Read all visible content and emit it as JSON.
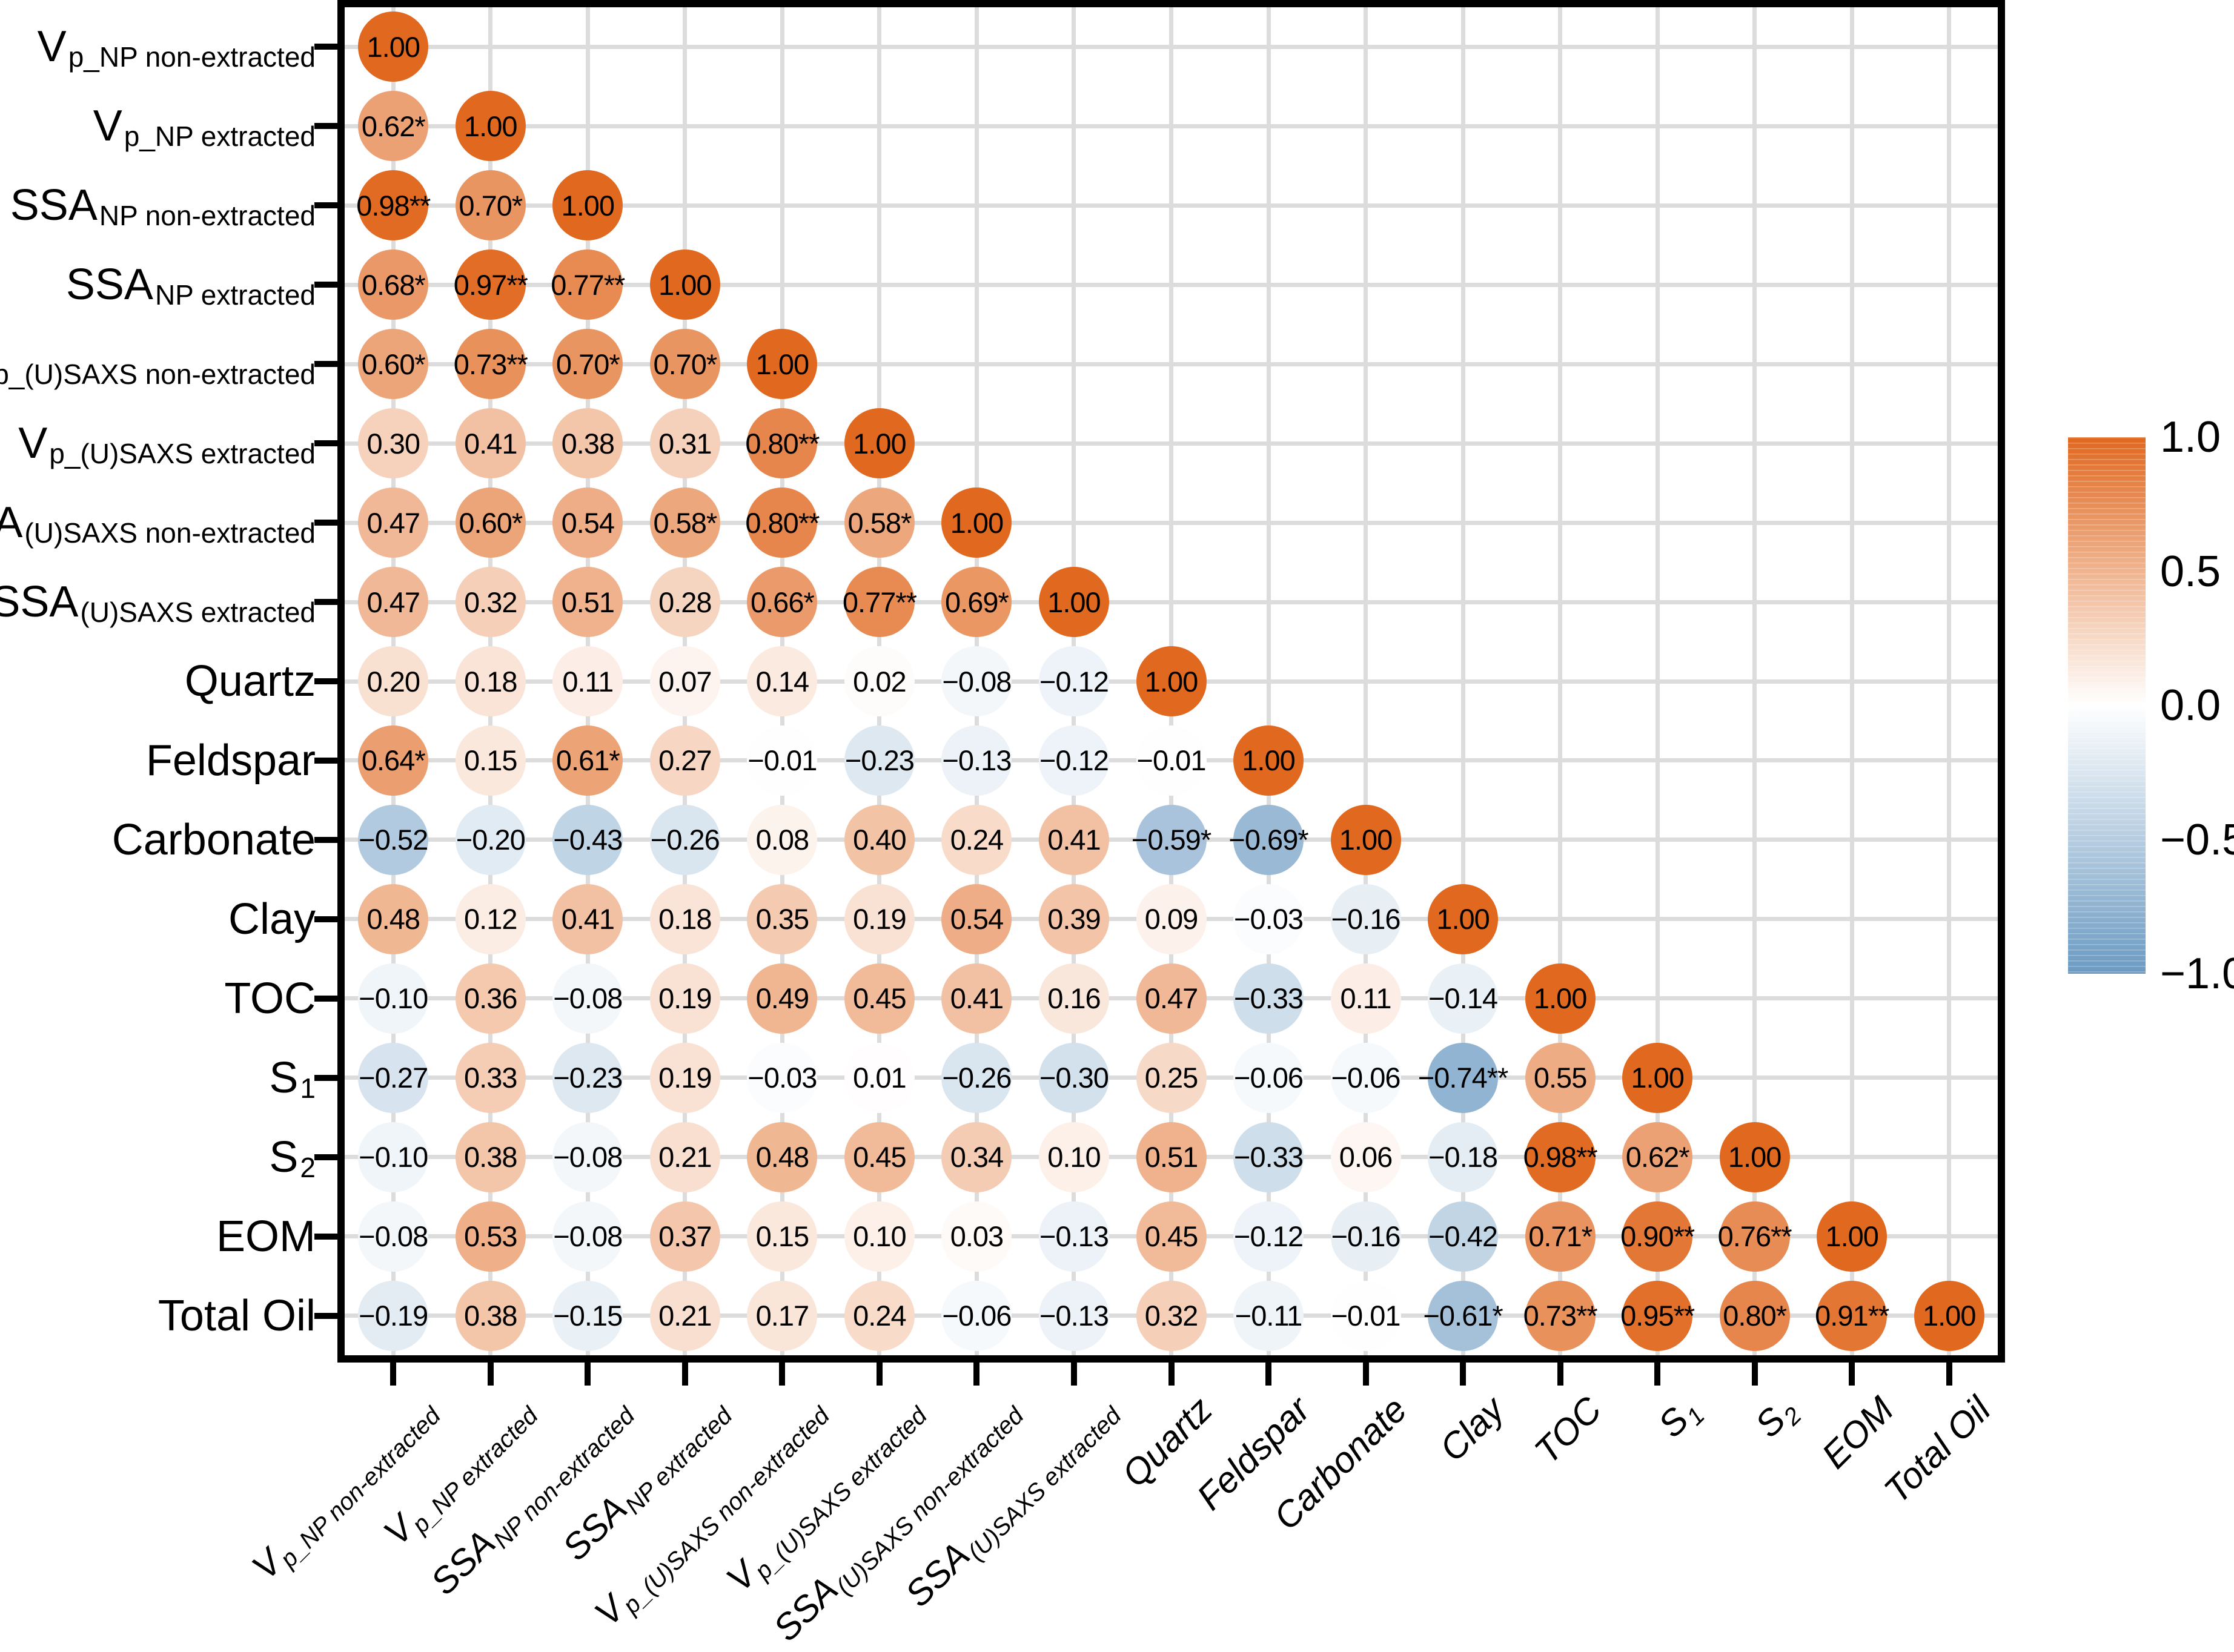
{
  "chart_data": {
    "type": "heatmap",
    "subtype": "correlation-matrix-lower-triangle",
    "title": "",
    "grid": true,
    "legend_position": "right",
    "variables": [
      {
        "main": "V",
        "sub": "p_NP non-extracted"
      },
      {
        "main": "V",
        "sub": "p_NP extracted"
      },
      {
        "main": "SSA",
        "sub": "NP non-extracted"
      },
      {
        "main": "SSA",
        "sub": "NP extracted"
      },
      {
        "main": "V",
        "sub": "p_(U)SAXS non-extracted"
      },
      {
        "main": "V",
        "sub": "p_(U)SAXS extracted"
      },
      {
        "main": "SSA",
        "sub": "(U)SAXS non-extracted"
      },
      {
        "main": "SSA",
        "sub": "(U)SAXS extracted"
      },
      {
        "main": "Quartz",
        "sub": ""
      },
      {
        "main": "Feldspar",
        "sub": ""
      },
      {
        "main": "Carbonate",
        "sub": ""
      },
      {
        "main": "Clay",
        "sub": ""
      },
      {
        "main": "TOC",
        "sub": ""
      },
      {
        "main": "S",
        "sub": "1"
      },
      {
        "main": "S",
        "sub": "2"
      },
      {
        "main": "EOM",
        "sub": ""
      },
      {
        "main": "Total Oil",
        "sub": ""
      }
    ],
    "matrix_display": [
      [
        "1.00"
      ],
      [
        "0.62*",
        "1.00"
      ],
      [
        "0.98**",
        "0.70*",
        "1.00"
      ],
      [
        "0.68*",
        "0.97**",
        "0.77**",
        "1.00"
      ],
      [
        "0.60*",
        "0.73**",
        "0.70*",
        "0.70*",
        "1.00"
      ],
      [
        "0.30",
        "0.41",
        "0.38",
        "0.31",
        "0.80**",
        "1.00"
      ],
      [
        "0.47",
        "0.60*",
        "0.54",
        "0.58*",
        "0.80**",
        "0.58*",
        "1.00"
      ],
      [
        "0.47",
        "0.32",
        "0.51",
        "0.28",
        "0.66*",
        "0.77**",
        "0.69*",
        "1.00"
      ],
      [
        "0.20",
        "0.18",
        "0.11",
        "0.07",
        "0.14",
        "0.02",
        "-0.08",
        "-0.12",
        "1.00"
      ],
      [
        "0.64*",
        "0.15",
        "0.61*",
        "0.27",
        "-0.01",
        "-0.23",
        "-0.13",
        "-0.12",
        "-0.01",
        "1.00"
      ],
      [
        "-0.52",
        "-0.20",
        "-0.43",
        "-0.26",
        "0.08",
        "0.40",
        "0.24",
        "0.41",
        "-0.59*",
        "-0.69*",
        "1.00"
      ],
      [
        "0.48",
        "0.12",
        "0.41",
        "0.18",
        "0.35",
        "0.19",
        "0.54",
        "0.39",
        "0.09",
        "-0.03",
        "-0.16",
        "1.00"
      ],
      [
        "-0.10",
        "0.36",
        "-0.08",
        "0.19",
        "0.49",
        "0.45",
        "0.41",
        "0.16",
        "0.47",
        "-0.33",
        "0.11",
        "-0.14",
        "1.00"
      ],
      [
        "-0.27",
        "0.33",
        "-0.23",
        "0.19",
        "-0.03",
        "0.01",
        "-0.26",
        "-0.30",
        "0.25",
        "-0.06",
        "-0.06",
        "-0.74**",
        "0.55",
        "1.00"
      ],
      [
        "-0.10",
        "0.38",
        "-0.08",
        "0.21",
        "0.48",
        "0.45",
        "0.34",
        "0.10",
        "0.51",
        "-0.33",
        "0.06",
        "-0.18",
        "0.98**",
        "0.62*",
        "1.00"
      ],
      [
        "-0.08",
        "0.53",
        "-0.08",
        "0.37",
        "0.15",
        "0.10",
        "0.03",
        "-0.13",
        "0.45",
        "-0.12",
        "-0.16",
        "-0.42",
        "0.71*",
        "0.90**",
        "0.76**",
        "1.00"
      ],
      [
        "-0.19",
        "0.38",
        "-0.15",
        "0.21",
        "0.17",
        "0.24",
        "-0.06",
        "-0.13",
        "0.32",
        "-0.11",
        "-0.01",
        "-0.61*",
        "0.73**",
        "0.95**",
        "0.80*",
        "0.91**",
        "1.00"
      ]
    ],
    "colorscale": {
      "min": -1,
      "max": 1,
      "positive": "#e0681f",
      "zero": "#ffffff",
      "negative": "#6b9ac2"
    },
    "legend": {
      "ticks": [
        "1.0",
        "0.5",
        "0.0",
        "-0.5",
        "-1.0"
      ]
    },
    "grid_color": "#dcdcdc"
  }
}
